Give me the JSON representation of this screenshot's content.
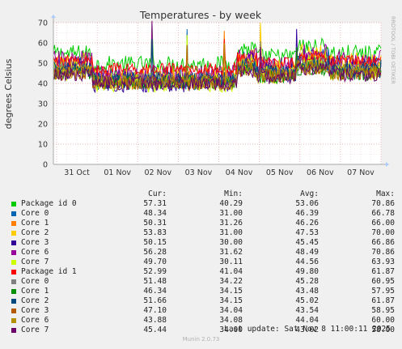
{
  "chart_data": {
    "type": "line",
    "title": "Temperatures - by week",
    "ylabel": "degrees Celsius",
    "ylim": [
      0,
      70
    ],
    "yticks": [
      0,
      10,
      20,
      30,
      40,
      50,
      60,
      70
    ],
    "xticks": [
      "31 Oct",
      "01 Nov",
      "02 Nov",
      "03 Nov",
      "04 Nov",
      "05 Nov",
      "06 Nov",
      "07 Nov"
    ],
    "grid": true,
    "watermark": "RRDTOOL / TOBI OETIKER",
    "series": [
      {
        "name": "Package id 0",
        "color": "#00cc00",
        "cur": "57.31",
        "min": "40.29",
        "avg": "53.06",
        "max": "70.86"
      },
      {
        "name": "Core 0",
        "color": "#0066b3",
        "cur": "48.34",
        "min": "31.00",
        "avg": "46.39",
        "max": "66.78"
      },
      {
        "name": "Core 1",
        "color": "#ff8000",
        "cur": "50.31",
        "min": "31.26",
        "avg": "46.26",
        "max": "66.00"
      },
      {
        "name": "Core 2",
        "color": "#ffcc00",
        "cur": "53.83",
        "min": "31.00",
        "avg": "47.53",
        "max": "70.00"
      },
      {
        "name": "Core 3",
        "color": "#330099",
        "cur": "50.15",
        "min": "30.00",
        "avg": "45.45",
        "max": "66.86"
      },
      {
        "name": "Core 6",
        "color": "#990099",
        "cur": "56.28",
        "min": "31.62",
        "avg": "48.49",
        "max": "70.86"
      },
      {
        "name": "Core 7",
        "color": "#ccff00",
        "cur": "49.70",
        "min": "30.11",
        "avg": "44.56",
        "max": "63.93"
      },
      {
        "name": "Package id 1",
        "color": "#ff0000",
        "cur": "52.99",
        "min": "41.04",
        "avg": "49.80",
        "max": "61.87"
      },
      {
        "name": "Core 0",
        "color": "#808080",
        "cur": "51.48",
        "min": "34.22",
        "avg": "45.28",
        "max": "60.95"
      },
      {
        "name": "Core 1",
        "color": "#008f00",
        "cur": "46.34",
        "min": "34.15",
        "avg": "43.48",
        "max": "57.95"
      },
      {
        "name": "Core 2",
        "color": "#00487d",
        "cur": "51.66",
        "min": "34.15",
        "avg": "45.02",
        "max": "61.87"
      },
      {
        "name": "Core 3",
        "color": "#b35a00",
        "cur": "47.10",
        "min": "34.04",
        "avg": "43.54",
        "max": "58.95"
      },
      {
        "name": "Core 6",
        "color": "#b38f00",
        "cur": "43.88",
        "min": "34.08",
        "avg": "44.04",
        "max": "60.00"
      },
      {
        "name": "Core 7",
        "color": "#6b006b",
        "cur": "45.44",
        "min": "34.00",
        "avg": "43.02",
        "max": "58.00"
      }
    ]
  },
  "legend": {
    "cur_label": "Cur:",
    "min_label": "Min:",
    "avg_label": "Avg:",
    "max_label": "Max:"
  },
  "last_update": "Last update: Sat Nov  8 11:00:11 2025",
  "footer": "Munin 2.0.73"
}
